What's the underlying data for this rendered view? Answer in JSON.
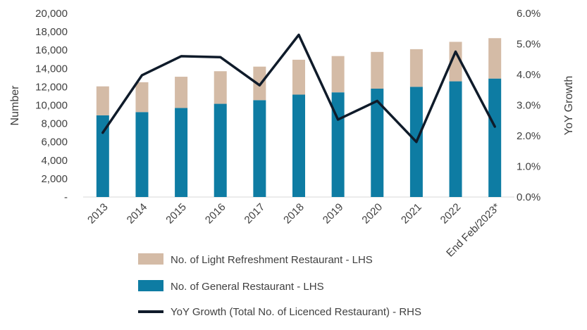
{
  "chart_data": {
    "type": "bar",
    "stacked": true,
    "categories": [
      "2013",
      "2014",
      "2015",
      "2016",
      "2017",
      "2018",
      "2019",
      "2020",
      "2021",
      "2022",
      "End Feb/2023*"
    ],
    "ylabel": "Number",
    "y2label": "YoY Growth",
    "ylim": [
      0,
      20000
    ],
    "y2lim": [
      0,
      0.06
    ],
    "yticks": [
      "-",
      "2,000",
      "4,000",
      "6,000",
      "8,000",
      "10,000",
      "12,000",
      "14,000",
      "16,000",
      "18,000",
      "20,000"
    ],
    "y2ticks": [
      "0.0%",
      "1.0%",
      "2.0%",
      "3.0%",
      "4.0%",
      "5.0%",
      "6.0%"
    ],
    "grid": false,
    "legend_position": "bottom",
    "series": [
      {
        "name": "No. of General Restaurant - LHS",
        "type": "bar",
        "axis": "left",
        "color": "#0E7CA3",
        "values": [
          8900,
          9250,
          9700,
          10150,
          10550,
          11150,
          11400,
          11800,
          12000,
          12600,
          12900
        ]
      },
      {
        "name": "No. of Light Refreshment Restaurant - LHS",
        "type": "bar",
        "axis": "left",
        "color": "#D4BBA6",
        "values": [
          3150,
          3250,
          3400,
          3550,
          3650,
          3800,
          3950,
          4000,
          4100,
          4300,
          4400
        ]
      },
      {
        "name": "YoY Growth (Total No. of Licenced Restaurant) - RHS",
        "type": "line",
        "axis": "right",
        "color": "#0F1B2A",
        "values": [
          0.021,
          0.0398,
          0.046,
          0.0457,
          0.0365,
          0.053,
          0.0253,
          0.0314,
          0.018,
          0.0475,
          0.023
        ]
      }
    ]
  }
}
